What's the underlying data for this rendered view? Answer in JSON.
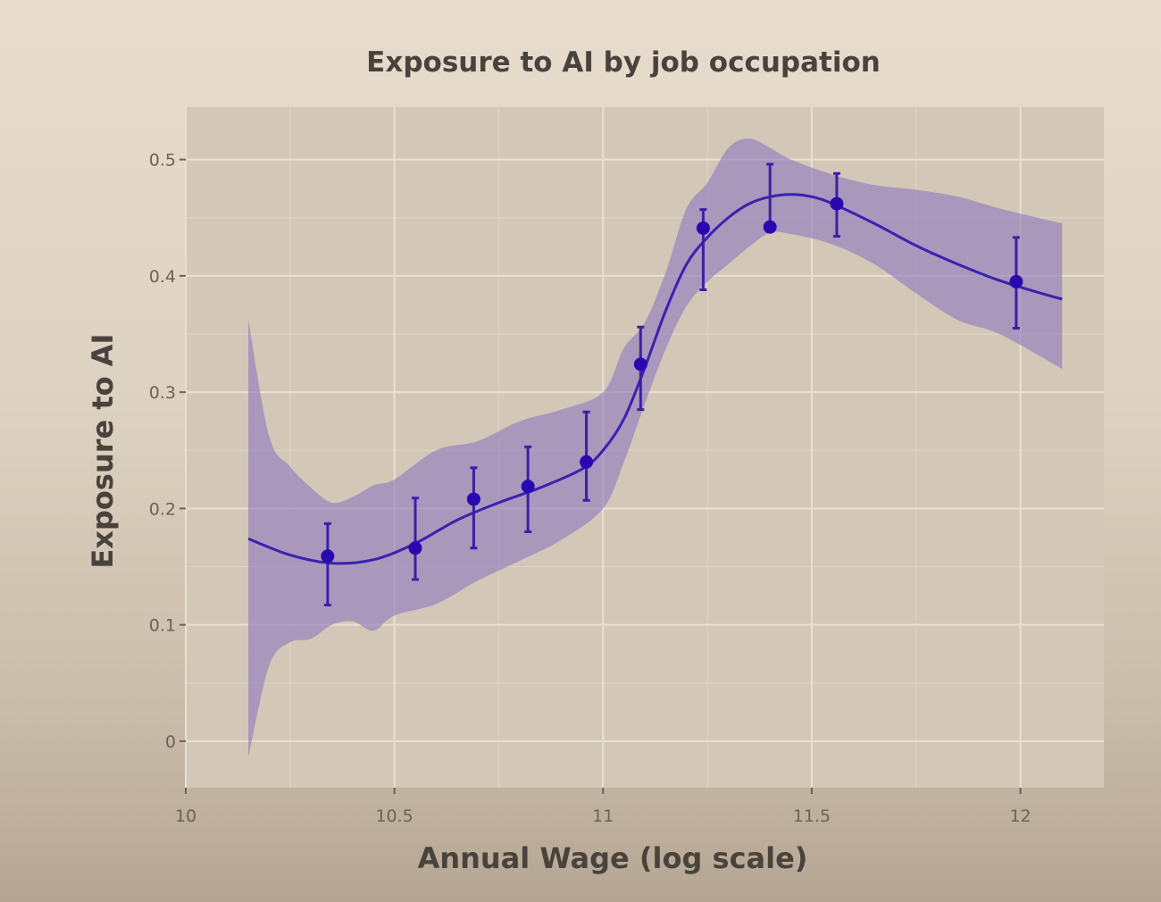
{
  "chart_data": {
    "type": "scatter",
    "title": "Exposure to AI by job occupation",
    "xlabel": "Annual Wage (log scale)",
    "ylabel": "Exposure to AI",
    "xlim": [
      10,
      12.2
    ],
    "ylim": [
      -0.04,
      0.545
    ],
    "x_ticks": [
      10,
      10.5,
      11,
      11.5,
      12
    ],
    "x_tick_labels": [
      "10",
      "10.5",
      "11",
      "11.5",
      "12"
    ],
    "y_ticks": [
      0,
      0.1,
      0.2,
      0.3,
      0.4,
      0.5
    ],
    "y_tick_labels": [
      "0",
      "0.1",
      "0.2",
      "0.3",
      "0.4",
      "0.5"
    ],
    "grid": true,
    "points": [
      {
        "x": 10.34,
        "y": 0.159,
        "lo": 0.117,
        "hi": 0.187
      },
      {
        "x": 10.55,
        "y": 0.166,
        "lo": 0.139,
        "hi": 0.209
      },
      {
        "x": 10.69,
        "y": 0.208,
        "lo": 0.166,
        "hi": 0.235
      },
      {
        "x": 10.82,
        "y": 0.219,
        "lo": 0.18,
        "hi": 0.253
      },
      {
        "x": 10.96,
        "y": 0.24,
        "lo": 0.207,
        "hi": 0.283
      },
      {
        "x": 11.09,
        "y": 0.324,
        "lo": 0.285,
        "hi": 0.356
      },
      {
        "x": 11.24,
        "y": 0.441,
        "lo": 0.388,
        "hi": 0.457
      },
      {
        "x": 11.4,
        "y": 0.442,
        "lo": 0.442,
        "hi": 0.496
      },
      {
        "x": 11.56,
        "y": 0.462,
        "lo": 0.434,
        "hi": 0.488
      },
      {
        "x": 11.99,
        "y": 0.395,
        "lo": 0.355,
        "hi": 0.433
      }
    ],
    "smooth_fit": [
      [
        10.15,
        0.174
      ],
      [
        10.25,
        0.16
      ],
      [
        10.35,
        0.153
      ],
      [
        10.45,
        0.156
      ],
      [
        10.55,
        0.17
      ],
      [
        10.65,
        0.19
      ],
      [
        10.75,
        0.205
      ],
      [
        10.85,
        0.218
      ],
      [
        10.95,
        0.234
      ],
      [
        11.0,
        0.25
      ],
      [
        11.05,
        0.277
      ],
      [
        11.1,
        0.321
      ],
      [
        11.15,
        0.37
      ],
      [
        11.2,
        0.41
      ],
      [
        11.25,
        0.433
      ],
      [
        11.3,
        0.45
      ],
      [
        11.35,
        0.462
      ],
      [
        11.4,
        0.468
      ],
      [
        11.45,
        0.47
      ],
      [
        11.5,
        0.468
      ],
      [
        11.55,
        0.462
      ],
      [
        11.65,
        0.445
      ],
      [
        11.75,
        0.426
      ],
      [
        11.85,
        0.41
      ],
      [
        11.95,
        0.396
      ],
      [
        12.05,
        0.385
      ],
      [
        12.1,
        0.38
      ]
    ],
    "confidence_band_upper": [
      [
        10.15,
        0.362
      ],
      [
        10.2,
        0.262
      ],
      [
        10.25,
        0.236
      ],
      [
        10.3,
        0.218
      ],
      [
        10.35,
        0.205
      ],
      [
        10.4,
        0.21
      ],
      [
        10.45,
        0.22
      ],
      [
        10.5,
        0.225
      ],
      [
        10.6,
        0.25
      ],
      [
        10.7,
        0.258
      ],
      [
        10.8,
        0.275
      ],
      [
        10.9,
        0.285
      ],
      [
        11.0,
        0.3
      ],
      [
        11.05,
        0.338
      ],
      [
        11.1,
        0.36
      ],
      [
        11.15,
        0.403
      ],
      [
        11.2,
        0.458
      ],
      [
        11.25,
        0.48
      ],
      [
        11.3,
        0.51
      ],
      [
        11.35,
        0.518
      ],
      [
        11.4,
        0.51
      ],
      [
        11.45,
        0.5
      ],
      [
        11.55,
        0.487
      ],
      [
        11.65,
        0.478
      ],
      [
        11.75,
        0.474
      ],
      [
        11.85,
        0.468
      ],
      [
        11.95,
        0.458
      ],
      [
        12.1,
        0.445
      ]
    ],
    "confidence_band_lower": [
      [
        10.15,
        -0.014
      ],
      [
        10.2,
        0.065
      ],
      [
        10.25,
        0.085
      ],
      [
        10.3,
        0.088
      ],
      [
        10.35,
        0.1
      ],
      [
        10.4,
        0.103
      ],
      [
        10.45,
        0.095
      ],
      [
        10.5,
        0.108
      ],
      [
        10.6,
        0.118
      ],
      [
        10.7,
        0.138
      ],
      [
        10.8,
        0.155
      ],
      [
        10.9,
        0.173
      ],
      [
        11.0,
        0.2
      ],
      [
        11.05,
        0.24
      ],
      [
        11.1,
        0.29
      ],
      [
        11.15,
        0.337
      ],
      [
        11.2,
        0.374
      ],
      [
        11.25,
        0.395
      ],
      [
        11.3,
        0.41
      ],
      [
        11.35,
        0.425
      ],
      [
        11.4,
        0.437
      ],
      [
        11.45,
        0.436
      ],
      [
        11.55,
        0.427
      ],
      [
        11.65,
        0.41
      ],
      [
        11.75,
        0.385
      ],
      [
        11.85,
        0.362
      ],
      [
        11.95,
        0.35
      ],
      [
        12.1,
        0.32
      ]
    ],
    "colors": {
      "point": "#2a08b0",
      "error_bar": "#3d1fa6",
      "fit_line": "#3b21b0",
      "band": "#9079bf",
      "panel": "#d3c7b7",
      "grid_major": "#e9e0d3",
      "grid_minor": "#ddd3c5"
    }
  }
}
